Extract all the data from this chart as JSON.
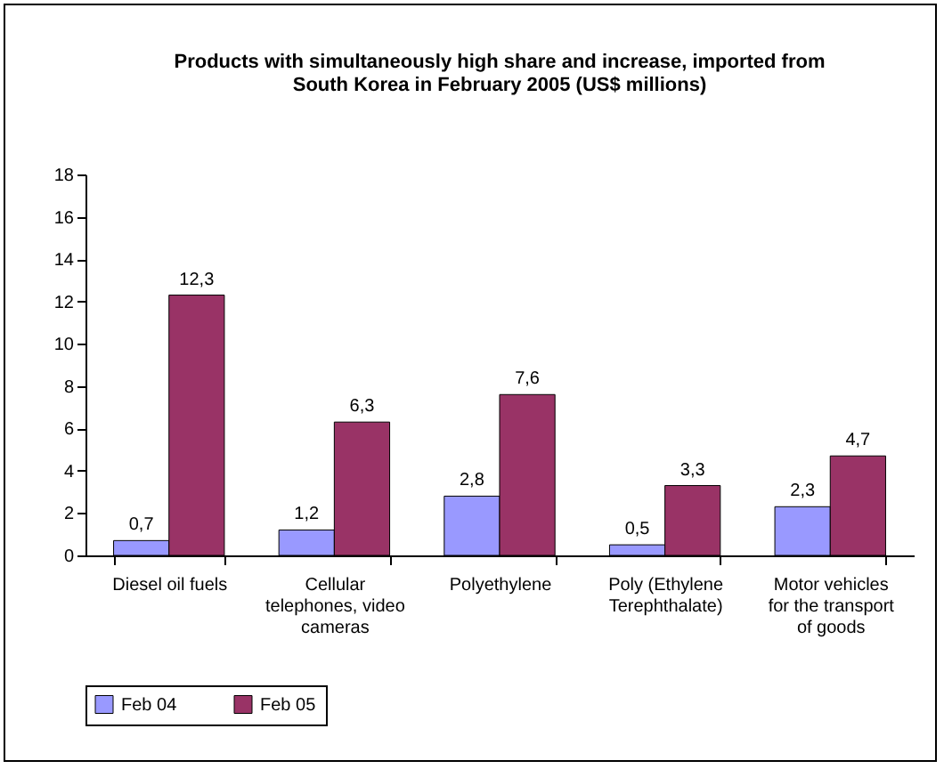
{
  "chart_data": {
    "type": "bar",
    "title": "Products with simultaneously high share and increase, imported from South Korea in February 2005 (US$ millions)",
    "categories": [
      "Diesel oil fuels",
      "Cellular telephones, video cameras",
      "Polyethylene",
      "Poly (Ethylene Terephthalate)",
      "Motor vehicles for the transport of goods"
    ],
    "series": [
      {
        "name": "Feb 04",
        "color": "#9999ff",
        "values": [
          0.7,
          1.2,
          2.8,
          0.5,
          2.3
        ],
        "value_labels": [
          "0,7",
          "1,2",
          "2,8",
          "0,5",
          "2,3"
        ]
      },
      {
        "name": "Feb 05",
        "color": "#993366",
        "values": [
          12.3,
          6.3,
          7.6,
          3.3,
          4.7
        ],
        "value_labels": [
          "12,3",
          "6,3",
          "7,6",
          "3,3",
          "4,7"
        ]
      }
    ],
    "ylim": [
      0,
      18
    ],
    "yticks": [
      0,
      2,
      4,
      6,
      8,
      10,
      12,
      14,
      16,
      18
    ],
    "grid": false,
    "legend": "bottom"
  }
}
